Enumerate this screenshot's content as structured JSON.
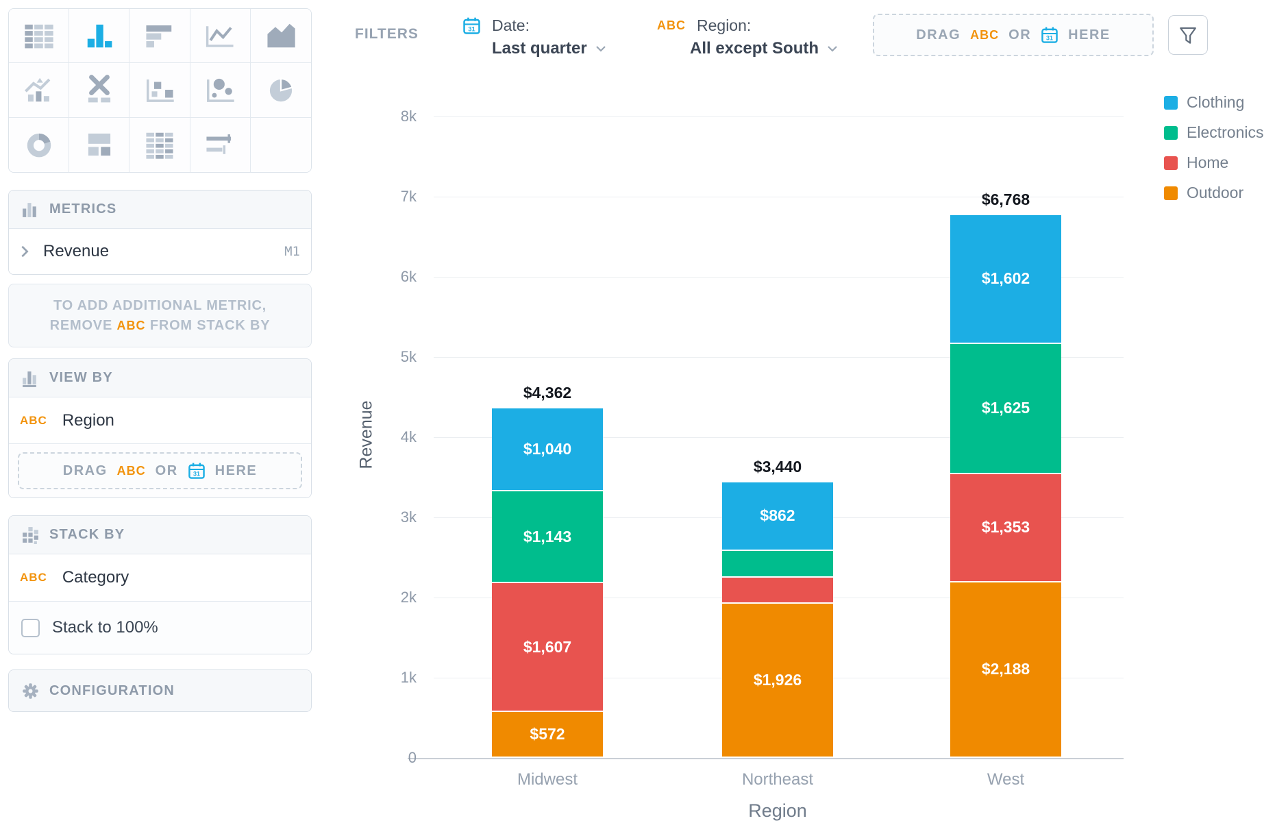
{
  "palette": {
    "accent_blue": "#1CAEE4",
    "accent_orange": "#F2930D",
    "icon_gray": "#c3cdd8",
    "icon_gray_dark": "#9fabba"
  },
  "chart_picker": {
    "items": [
      {
        "name": "data-table",
        "selected": false
      },
      {
        "name": "bar-chart",
        "selected": true
      },
      {
        "name": "horizontal-bar-chart",
        "selected": false
      },
      {
        "name": "line-chart",
        "selected": false
      },
      {
        "name": "area-chart",
        "selected": false
      },
      {
        "name": "trend-combo-chart",
        "selected": false
      },
      {
        "name": "x-axis-chart",
        "selected": false
      },
      {
        "name": "scatter-plot",
        "selected": false
      },
      {
        "name": "bubble-chart",
        "selected": false
      },
      {
        "name": "pie-chart",
        "selected": false
      },
      {
        "name": "donut-chart",
        "selected": false
      },
      {
        "name": "layout-widget",
        "selected": false
      },
      {
        "name": "pivot-table",
        "selected": false
      },
      {
        "name": "range-widget",
        "selected": false
      },
      {
        "name": "empty",
        "selected": false
      }
    ]
  },
  "panels": {
    "metrics": {
      "title": "METRICS",
      "item": {
        "label": "Revenue",
        "badge": "M1"
      },
      "note": {
        "line1": "TO ADD ADDITIONAL METRIC,",
        "line2_pre": "REMOVE",
        "line2_abc": "ABC",
        "line2_post": "FROM STACK BY"
      }
    },
    "view_by": {
      "title": "VIEW BY",
      "field": {
        "type_badge": "ABC",
        "label": "Region"
      },
      "drop_zone": {
        "drag": "DRAG",
        "abc": "ABC",
        "or": "OR",
        "here": "HERE"
      }
    },
    "stack_by": {
      "title": "STACK BY",
      "field": {
        "type_badge": "ABC",
        "label": "Category"
      },
      "checkbox": {
        "label": "Stack to 100%",
        "checked": false
      }
    },
    "configuration": {
      "title": "CONFIGURATION"
    }
  },
  "filters": {
    "label": "FILTERS",
    "date": {
      "name": "Date:",
      "value": "Last quarter"
    },
    "region": {
      "name": "Region:",
      "type_badge": "ABC",
      "value": "All except South"
    },
    "drop_zone": {
      "drag": "DRAG",
      "abc": "ABC",
      "or": "OR",
      "here": "HERE"
    }
  },
  "chart_data": {
    "type": "bar",
    "stacked": true,
    "xlabel": "Region",
    "ylabel": "Revenue",
    "categories": [
      "Midwest",
      "Northeast",
      "West"
    ],
    "series": [
      {
        "name": "Clothing",
        "color": "#1CAEE4",
        "values": [
          1040,
          862,
          1602
        ]
      },
      {
        "name": "Electronics",
        "color": "#00BD8D",
        "values": [
          1143,
          326,
          1625
        ]
      },
      {
        "name": "Home",
        "color": "#E8534F",
        "values": [
          1607,
          326,
          1353
        ]
      },
      {
        "name": "Outdoor",
        "color": "#F08A00",
        "values": [
          572,
          1926,
          2188
        ]
      }
    ],
    "totals": [
      4362,
      3440,
      6768
    ],
    "y_ticks": [
      "0",
      "1k",
      "2k",
      "3k",
      "4k",
      "5k",
      "6k",
      "7k",
      "8k"
    ],
    "ylim": [
      0,
      8000
    ],
    "grid": true,
    "legend_position": "top-right",
    "segment_label_min_value": 500,
    "currency_prefix": "$"
  }
}
